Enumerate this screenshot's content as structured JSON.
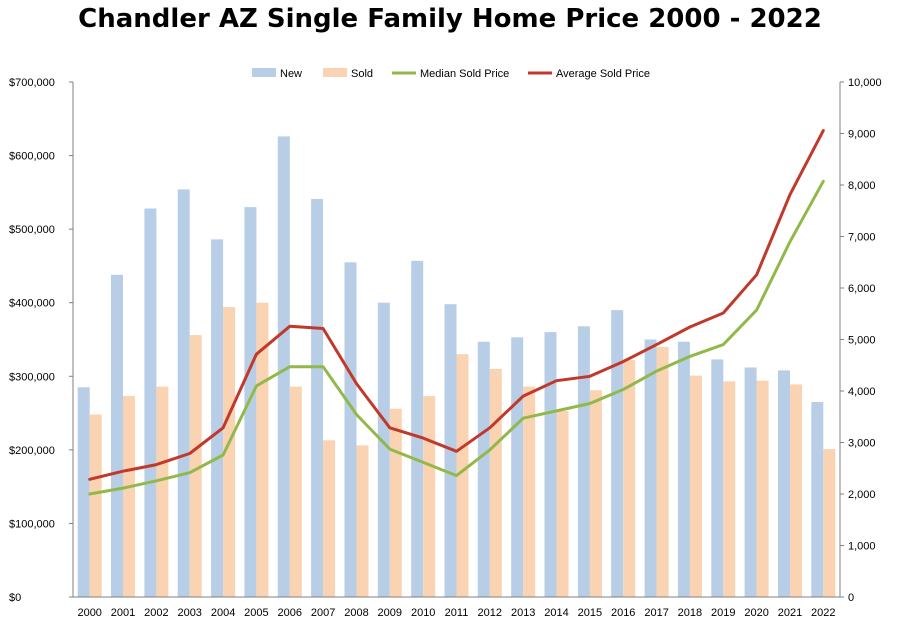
{
  "chart_data": {
    "type": "bar",
    "title": "Chandler AZ Single Family Home Price 2000 - 2022",
    "categories": [
      "2000",
      "2001",
      "2002",
      "2003",
      "2004",
      "2005",
      "2006",
      "2007",
      "2008",
      "2009",
      "2010",
      "2011",
      "2012",
      "2013",
      "2014",
      "2015",
      "2016",
      "2017",
      "2018",
      "2019",
      "2020",
      "2021",
      "2022"
    ],
    "bar_series": [
      {
        "name": "New",
        "color": "#b8cde6",
        "axis": "left",
        "values": [
          285000,
          438000,
          528000,
          554000,
          486000,
          530000,
          626000,
          541000,
          455000,
          400000,
          457000,
          398000,
          347000,
          353000,
          360000,
          368000,
          390000,
          350000,
          347000,
          323000,
          312000,
          308000,
          265000
        ]
      },
      {
        "name": "Sold",
        "color": "#fad3b2",
        "axis": "left",
        "values": [
          248000,
          273000,
          286000,
          356000,
          394000,
          400000,
          286000,
          213000,
          206000,
          256000,
          273000,
          330000,
          310000,
          286000,
          253000,
          281000,
          322000,
          340000,
          301000,
          293000,
          294000,
          289000,
          201000
        ]
      }
    ],
    "line_series": [
      {
        "name": "Median Sold Price",
        "color": "#93b84a",
        "axis": "left",
        "values": [
          140000,
          148000,
          158000,
          169000,
          193000,
          287000,
          313000,
          313000,
          248000,
          201000,
          183000,
          165000,
          200000,
          243000,
          253000,
          263000,
          282000,
          307000,
          327000,
          343000,
          390000,
          483000,
          565000
        ]
      },
      {
        "name": "Average Sold Price",
        "color": "#c0392b",
        "axis": "left",
        "values": [
          160000,
          171000,
          180000,
          195000,
          230000,
          330000,
          368000,
          365000,
          290000,
          230000,
          216000,
          198000,
          230000,
          273000,
          294000,
          300000,
          320000,
          343000,
          367000,
          386000,
          438000,
          547000,
          634000
        ]
      }
    ],
    "y_left": {
      "min": 0,
      "max": 700000,
      "step": 100000,
      "ticks": [
        "$0",
        "$100,000",
        "$200,000",
        "$300,000",
        "$400,000",
        "$500,000",
        "$600,000",
        "$700,000"
      ]
    },
    "y_right": {
      "min": 0,
      "max": 10000,
      "step": 1000,
      "ticks": [
        "0",
        "1,000",
        "2,000",
        "3,000",
        "4,000",
        "5,000",
        "6,000",
        "7,000",
        "8,000",
        "9,000",
        "10,000"
      ]
    },
    "legend": {
      "position": "top-center",
      "entries": [
        "New",
        "Sold",
        "Median Sold Price",
        "Average Sold Price"
      ]
    },
    "grid": false
  }
}
